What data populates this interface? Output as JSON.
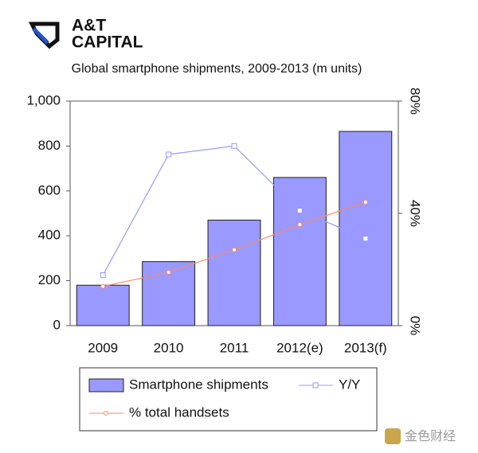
{
  "logo": {
    "line1": "A&T",
    "line2": "CAPITAL"
  },
  "watermark": "金色财经",
  "chart_data": {
    "type": "combo",
    "title": "Global smartphone shipments, 2009-2013 (m units)",
    "categories": [
      "2009",
      "2010",
      "2011",
      "2012(e)",
      "2013(f)"
    ],
    "ylim": [
      0,
      1000
    ],
    "yticks": [
      0,
      200,
      400,
      600,
      800,
      {
        "value": 1000,
        "label": "1,000"
      }
    ],
    "y2lim": [
      0,
      80
    ],
    "y2ticks": [
      {
        "value": 0,
        "label": "0%"
      },
      {
        "value": 40,
        "label": "40%"
      },
      {
        "value": 80,
        "label": "80%"
      }
    ],
    "series": [
      {
        "name": "Smartphone shipments",
        "type": "bar",
        "color": "#9999ff",
        "values": [
          180,
          285,
          470,
          660,
          865
        ]
      },
      {
        "name": "Y/Y",
        "type": "line",
        "axis": "y2",
        "marker": "square",
        "color": "#9999ff",
        "values": [
          18,
          61,
          64,
          41,
          31
        ]
      },
      {
        "name": "% total handsets",
        "type": "line",
        "axis": "y2",
        "marker": "circle",
        "color": "#ff8866",
        "values": [
          14,
          19,
          27,
          36,
          44
        ]
      }
    ]
  }
}
